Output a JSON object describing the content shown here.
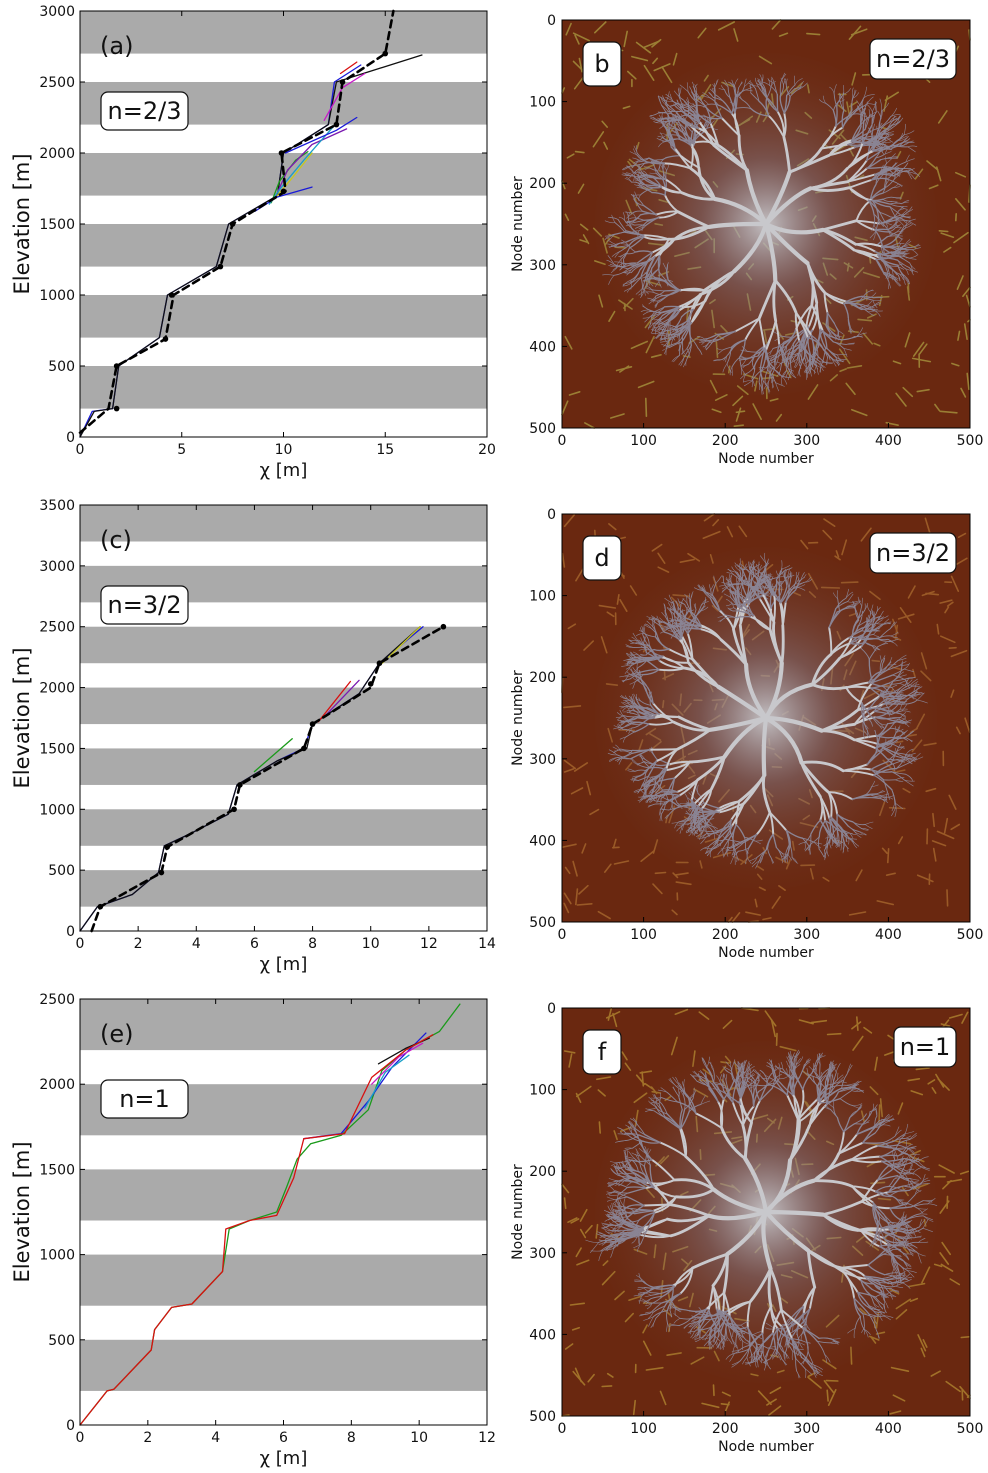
{
  "chart_data": [
    {
      "panel": "a",
      "type": "line",
      "panel_label": "(a)",
      "n_label": "n=2/3",
      "xlabel": "χ [m]",
      "ylabel": "Elevation [m]",
      "xlim": [
        0,
        20
      ],
      "ylim": [
        0,
        3000
      ],
      "xticks": [
        0,
        5,
        10,
        15,
        20
      ],
      "yticks": [
        0,
        500,
        1000,
        1500,
        2000,
        2500,
        3000
      ],
      "bands": [
        [
          200,
          500
        ],
        [
          700,
          1000
        ],
        [
          1200,
          1500
        ],
        [
          1700,
          2000
        ],
        [
          2200,
          2500
        ],
        [
          2700,
          3000
        ]
      ],
      "series": [
        {
          "color": "#1a1ad8",
          "dashed": false,
          "points": [
            [
              0,
              0
            ],
            [
              0.6,
              180
            ],
            [
              1.6,
              200
            ],
            [
              1.9,
              500
            ],
            [
              3.9,
              700
            ],
            [
              4.3,
              1000
            ],
            [
              6.7,
              1200
            ],
            [
              7.3,
              1500
            ],
            [
              9.7,
              1700
            ],
            [
              10.0,
              2000
            ],
            [
              12.2,
              2200
            ],
            [
              12.5,
              2500
            ],
            [
              13.8,
              2620
            ]
          ]
        },
        {
          "color": "#101010",
          "dashed": false,
          "points": [
            [
              0,
              0
            ],
            [
              0.7,
              180
            ],
            [
              1.6,
              200
            ],
            [
              1.9,
              500
            ],
            [
              3.9,
              700
            ],
            [
              4.3,
              1000
            ],
            [
              6.7,
              1200
            ],
            [
              7.3,
              1500
            ],
            [
              9.7,
              1700
            ],
            [
              10.0,
              2000
            ],
            [
              12.2,
              2200
            ],
            [
              12.6,
              2500
            ],
            [
              16.8,
              2690
            ]
          ]
        },
        {
          "color": "#1a9a1a",
          "dashed": false,
          "points": [
            [
              9.4,
              1650
            ],
            [
              9.8,
              1800
            ],
            [
              10.6,
              1950
            ],
            [
              11.2,
              2010
            ]
          ]
        },
        {
          "color": "#d81010",
          "dashed": false,
          "points": [
            [
              12.8,
              2560
            ],
            [
              13.6,
              2640
            ]
          ]
        },
        {
          "color": "#7a1ab0",
          "dashed": false,
          "points": [
            [
              9.6,
              1690
            ],
            [
              10.2,
              1880
            ],
            [
              11.4,
              2060
            ],
            [
              13.1,
              2170
            ]
          ]
        },
        {
          "color": "#1aa0c8",
          "dashed": false,
          "points": [
            [
              9.3,
              1640
            ],
            [
              9.9,
              1760
            ],
            [
              11.0,
              1950
            ],
            [
              12.6,
              2210
            ]
          ]
        },
        {
          "color": "#c8c81a",
          "dashed": false,
          "points": [
            [
              9.7,
              1700
            ],
            [
              10.4,
              1820
            ],
            [
              11.4,
              2000
            ]
          ]
        },
        {
          "color": "#c81ac8",
          "dashed": false,
          "points": [
            [
              12.0,
              2230
            ],
            [
              12.9,
              2460
            ],
            [
              14.0,
              2560
            ]
          ]
        },
        {
          "color": "#1a1ad8",
          "dashed": false,
          "points": [
            [
              8.6,
              1590
            ],
            [
              9.7,
              1690
            ],
            [
              11.4,
              1760
            ]
          ]
        },
        {
          "color": "#1a1ad8",
          "dashed": false,
          "points": [
            [
              10.1,
              2000
            ],
            [
              12.6,
              2160
            ],
            [
              13.6,
              2250
            ]
          ]
        },
        {
          "color": "#000000",
          "dashed": true,
          "points": [
            [
              0,
              30
            ],
            [
              1.4,
              200
            ],
            [
              1.8,
              500
            ],
            [
              4.2,
              690
            ],
            [
              4.6,
              1000
            ],
            [
              6.9,
              1200
            ],
            [
              7.5,
              1500
            ],
            [
              10.1,
              1730
            ],
            [
              9.9,
              2000
            ],
            [
              12.6,
              2200
            ],
            [
              12.9,
              2500
            ],
            [
              15.0,
              2700
            ],
            [
              15.4,
              3000
            ]
          ]
        }
      ],
      "markers": [
        [
          1.8,
          200
        ],
        [
          1.8,
          500
        ],
        [
          4.2,
          690
        ],
        [
          4.5,
          1000
        ],
        [
          6.9,
          1200
        ],
        [
          7.5,
          1500
        ],
        [
          10.0,
          1730
        ],
        [
          9.9,
          2000
        ],
        [
          12.6,
          2200
        ],
        [
          12.9,
          2500
        ],
        [
          15.0,
          2700
        ]
      ]
    },
    {
      "panel": "c",
      "type": "line",
      "panel_label": "(c)",
      "n_label": "n=3/2",
      "xlabel": "χ [m]",
      "ylabel": "Elevation [m]",
      "xlim": [
        0,
        14
      ],
      "ylim": [
        0,
        3500
      ],
      "xticks": [
        0,
        2,
        4,
        6,
        8,
        10,
        12,
        14
      ],
      "yticks": [
        0,
        500,
        1000,
        1500,
        2000,
        2500,
        3000,
        3500
      ],
      "bands": [
        [
          200,
          500
        ],
        [
          700,
          1000
        ],
        [
          1200,
          1500
        ],
        [
          1700,
          2000
        ],
        [
          2200,
          2500
        ],
        [
          2700,
          3000
        ],
        [
          3200,
          3500
        ]
      ],
      "series": [
        {
          "color": "#1a1ad8",
          "dashed": false,
          "points": [
            [
              0,
              0
            ],
            [
              0.6,
              200
            ],
            [
              1.8,
              300
            ],
            [
              2.7,
              480
            ],
            [
              2.9,
              700
            ],
            [
              3.8,
              800
            ],
            [
              5.1,
              960
            ],
            [
              5.4,
              1200
            ],
            [
              6.8,
              1400
            ],
            [
              7.7,
              1500
            ],
            [
              8.0,
              1700
            ],
            [
              9.6,
              1950
            ],
            [
              10.3,
              2200
            ],
            [
              11.8,
              2500
            ]
          ]
        },
        {
          "color": "#101010",
          "dashed": false,
          "points": [
            [
              0,
              0
            ],
            [
              0.6,
              200
            ],
            [
              1.8,
              300
            ],
            [
              2.7,
              480
            ],
            [
              2.9,
              700
            ],
            [
              3.8,
              800
            ],
            [
              5.1,
              960
            ],
            [
              5.4,
              1200
            ],
            [
              6.8,
              1400
            ],
            [
              7.8,
              1500
            ],
            [
              8.0,
              1700
            ],
            [
              9.6,
              1950
            ],
            [
              10.3,
              2200
            ],
            [
              11.7,
              2500
            ]
          ]
        },
        {
          "color": "#d81010",
          "dashed": false,
          "points": [
            [
              8.2,
              1720
            ],
            [
              9.3,
              2050
            ]
          ]
        },
        {
          "color": "#1a9a1a",
          "dashed": false,
          "points": [
            [
              6.0,
              1310
            ],
            [
              7.3,
              1580
            ]
          ]
        },
        {
          "color": "#c8c81a",
          "dashed": false,
          "points": [
            [
              10.4,
              2200
            ],
            [
              11.7,
              2500
            ]
          ]
        },
        {
          "color": "#7a1ab0",
          "dashed": false,
          "points": [
            [
              8.4,
              1760
            ],
            [
              9.6,
              2060
            ]
          ]
        },
        {
          "color": "#000000",
          "dashed": true,
          "points": [
            [
              0.4,
              0
            ],
            [
              0.7,
              200
            ],
            [
              2.8,
              480
            ],
            [
              3.0,
              690
            ],
            [
              5.3,
              1000
            ],
            [
              5.5,
              1200
            ],
            [
              7.7,
              1500
            ],
            [
              8.0,
              1700
            ],
            [
              10.0,
              2000
            ],
            [
              10.3,
              2200
            ],
            [
              12.5,
              2500
            ]
          ]
        }
      ],
      "markers": [
        [
          0.7,
          200
        ],
        [
          2.8,
          480
        ],
        [
          3.0,
          690
        ],
        [
          5.3,
          1000
        ],
        [
          5.5,
          1200
        ],
        [
          7.7,
          1500
        ],
        [
          8.0,
          1700
        ],
        [
          10.0,
          2030
        ],
        [
          10.3,
          2200
        ],
        [
          12.5,
          2500
        ]
      ]
    },
    {
      "panel": "e",
      "type": "line",
      "panel_label": "(e)",
      "n_label": "n=1",
      "xlabel": "χ [m]",
      "ylabel": "Elevation [m]",
      "xlim": [
        0,
        12
      ],
      "ylim": [
        0,
        2500
      ],
      "xticks": [
        0,
        2,
        4,
        6,
        8,
        10,
        12
      ],
      "yticks": [
        0,
        500,
        1000,
        1500,
        2000,
        2500
      ],
      "bands": [
        [
          200,
          500
        ],
        [
          700,
          1000
        ],
        [
          1200,
          1500
        ],
        [
          1700,
          2000
        ],
        [
          2200,
          2500
        ]
      ],
      "series": [
        {
          "color": "#1a9a1a",
          "dashed": false,
          "points": [
            [
              0,
              0
            ],
            [
              0.8,
              200
            ],
            [
              1.0,
              210
            ],
            [
              2.1,
              440
            ],
            [
              2.2,
              560
            ],
            [
              2.7,
              690
            ],
            [
              3.3,
              710
            ],
            [
              4.2,
              900
            ],
            [
              4.4,
              1150
            ],
            [
              5.0,
              1200
            ],
            [
              5.8,
              1250
            ],
            [
              6.1,
              1400
            ],
            [
              6.4,
              1560
            ],
            [
              6.8,
              1650
            ],
            [
              7.7,
              1700
            ],
            [
              8.5,
              1850
            ],
            [
              8.9,
              2080
            ],
            [
              9.6,
              2200
            ],
            [
              10.6,
              2310
            ],
            [
              11.2,
              2470
            ]
          ]
        },
        {
          "color": "#1a1ad8",
          "dashed": false,
          "points": [
            [
              6.6,
              1680
            ],
            [
              7.7,
              1710
            ],
            [
              8.5,
              1900
            ],
            [
              9.2,
              2100
            ],
            [
              10.2,
              2300
            ]
          ]
        },
        {
          "color": "#1aa0c8",
          "dashed": false,
          "points": [
            [
              8.4,
              1860
            ],
            [
              9.0,
              2070
            ],
            [
              9.7,
              2170
            ]
          ]
        },
        {
          "color": "#c81ac8",
          "dashed": false,
          "points": [
            [
              8.6,
              2000
            ],
            [
              9.4,
              2160
            ],
            [
              10.1,
              2240
            ]
          ]
        },
        {
          "color": "#101010",
          "dashed": false,
          "points": [
            [
              8.8,
              2120
            ],
            [
              9.6,
              2210
            ],
            [
              10.3,
              2270
            ]
          ]
        },
        {
          "color": "#d81010",
          "dashed": false,
          "points": [
            [
              0,
              0
            ],
            [
              0.8,
              200
            ],
            [
              1.0,
              210
            ],
            [
              2.1,
              440
            ],
            [
              2.2,
              560
            ],
            [
              2.7,
              690
            ],
            [
              3.3,
              710
            ],
            [
              4.2,
              900
            ],
            [
              4.3,
              1150
            ],
            [
              5.0,
              1200
            ],
            [
              5.8,
              1230
            ],
            [
              6.3,
              1450
            ],
            [
              6.6,
              1680
            ],
            [
              7.8,
              1710
            ],
            [
              8.6,
              2040
            ],
            [
              9.6,
              2200
            ],
            [
              10.4,
              2290
            ]
          ]
        }
      ],
      "markers": []
    }
  ],
  "maps": [
    {
      "panel_label": "b",
      "n_label": "n=2/3",
      "xlabel": "Node number",
      "ylabel": "Node number",
      "ticks": [
        0,
        100,
        200,
        300,
        400,
        500
      ],
      "ridge_color": "#a08838"
    },
    {
      "panel_label": "d",
      "n_label": "n=3/2",
      "xlabel": "Node number",
      "ylabel": "Node number",
      "ticks": [
        0,
        100,
        200,
        300,
        400,
        500
      ],
      "ridge_color": "#a0602a"
    },
    {
      "panel_label": "f",
      "n_label": "n=1",
      "xlabel": "Node number",
      "ylabel": "Node number",
      "ticks": [
        0,
        100,
        200,
        300,
        400,
        500
      ],
      "ridge_color": "#a87a2c"
    }
  ],
  "colors": {
    "band": "#aaaaaa",
    "map_background": "#6a2810",
    "map_channel": "#c8c8cc",
    "map_channel_dark": "#8a8494"
  }
}
